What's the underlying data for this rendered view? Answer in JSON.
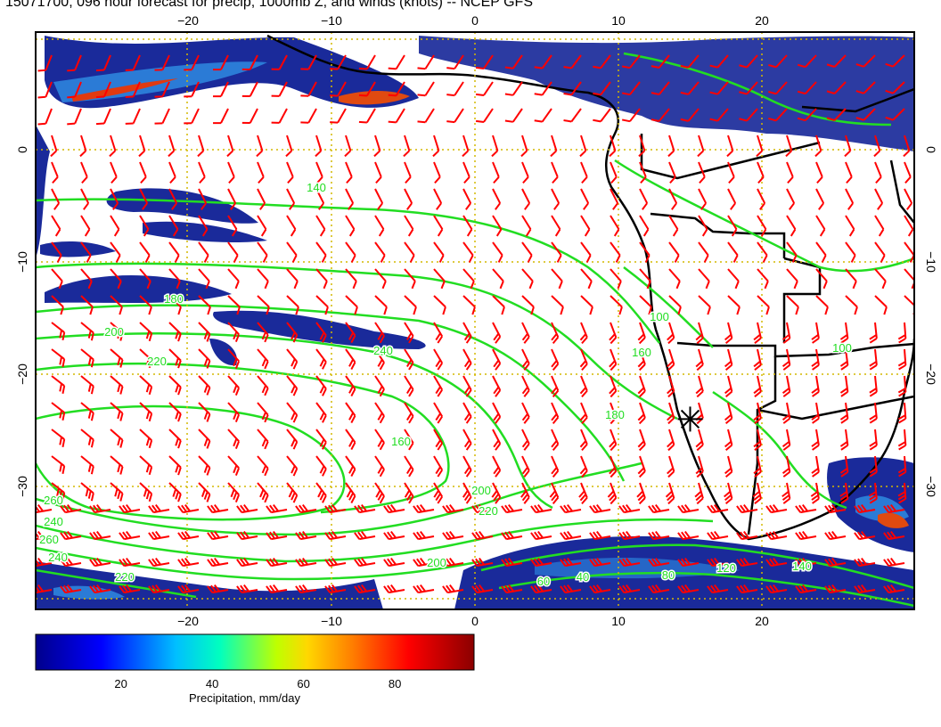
{
  "title": "15071700, 096 hour forecast for precip, 1000mb Z, and winds (knots) -- NCEP GFS",
  "map": {
    "lon_range": [
      -30,
      30
    ],
    "lat_range": [
      -40,
      10
    ],
    "lon_ticks": [
      -20,
      -10,
      0,
      10,
      20
    ],
    "lat_ticks": [
      0,
      -10,
      -20,
      -30
    ],
    "lon_tick_labels": [
      "−20",
      "−10",
      "0",
      "10",
      "20"
    ],
    "lat_tick_labels": [
      "0",
      "−10",
      "−20",
      "−30"
    ],
    "marker": {
      "lon": 15,
      "lat": -24
    },
    "contour_labels": [
      "140",
      "180",
      "200",
      "220",
      "240",
      "160",
      "200",
      "220",
      "240",
      "260",
      "240",
      "220",
      "200",
      "180",
      "160",
      "100",
      "60",
      "40",
      "80",
      "120",
      "140",
      "100",
      "260"
    ],
    "colors": {
      "contour": "#22dd22",
      "wind_barb": "#ff0000",
      "coast": "#000000",
      "grid": "#d4b800"
    }
  },
  "colorbar": {
    "label": "Precipitation, mm/day",
    "ticks": [
      "20",
      "40",
      "60",
      "80"
    ],
    "tick_values": [
      20,
      40,
      60,
      80
    ],
    "range": [
      1,
      97
    ],
    "colors": [
      "#00008b",
      "#0000ff",
      "#00bfff",
      "#00ffbf",
      "#bfff00",
      "#ffd700",
      "#ff8000",
      "#ff0000",
      "#8b0000"
    ]
  }
}
